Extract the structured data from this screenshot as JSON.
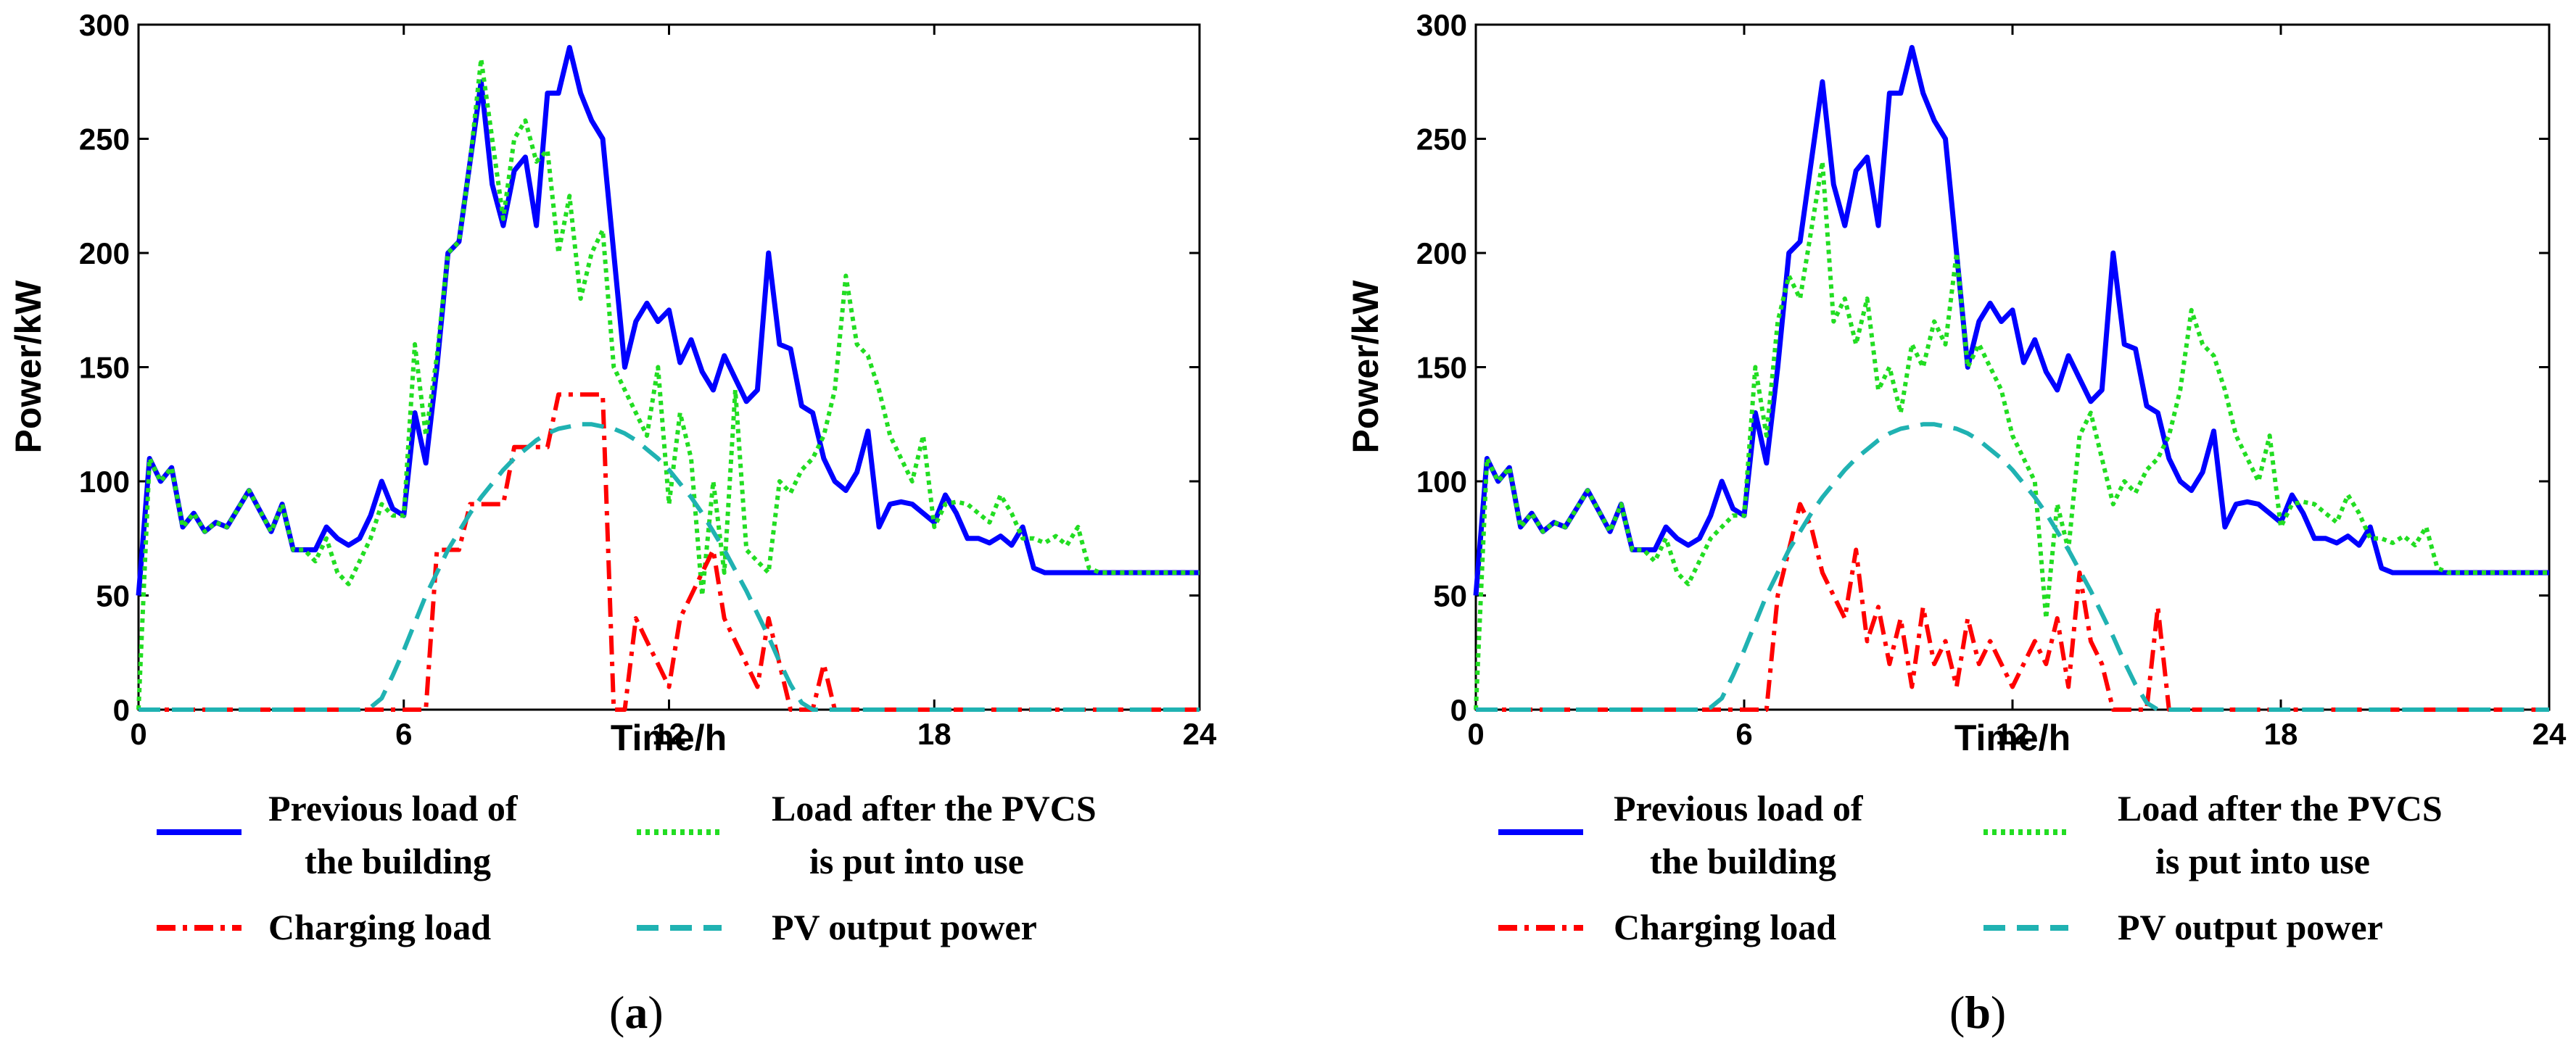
{
  "chart_data": [
    {
      "type": "line",
      "panel_label": "a",
      "xlabel": "Time/h",
      "ylabel": "Power/kW",
      "xlim": [
        0,
        24
      ],
      "ylim": [
        0,
        300
      ],
      "xticks": [
        "0",
        "6",
        "12",
        "18",
        "24"
      ],
      "yticks": [
        "0",
        "50",
        "100",
        "150",
        "200",
        "250",
        "300"
      ],
      "series": [
        {
          "name": "Previous load of the building",
          "color": "#0000ff",
          "style": "solid",
          "x": [
            0,
            0.25,
            0.5,
            0.75,
            1,
            1.25,
            1.5,
            1.75,
            2,
            2.25,
            2.5,
            2.75,
            3,
            3.25,
            3.5,
            3.75,
            4,
            4.25,
            4.5,
            4.75,
            5,
            5.25,
            5.5,
            5.75,
            6,
            6.25,
            6.5,
            6.75,
            7,
            7.25,
            7.5,
            7.75,
            8,
            8.25,
            8.5,
            8.75,
            9,
            9.25,
            9.5,
            9.75,
            10,
            10.25,
            10.5,
            10.75,
            11,
            11.25,
            11.5,
            11.75,
            12,
            12.25,
            12.5,
            12.75,
            13,
            13.25,
            13.5,
            13.75,
            14,
            14.25,
            14.5,
            14.75,
            15,
            15.25,
            15.5,
            15.75,
            16,
            16.25,
            16.5,
            16.75,
            17,
            17.25,
            17.5,
            17.75,
            18,
            18.25,
            18.5,
            18.75,
            19,
            19.25,
            19.5,
            19.75,
            20,
            20.25,
            20.5,
            20.75,
            21,
            21.25,
            21.5,
            21.75,
            22,
            22.25,
            22.5,
            22.75,
            23,
            23.25,
            23.5,
            23.75,
            24
          ],
          "values": [
            50,
            110,
            100,
            106,
            80,
            86,
            78,
            82,
            80,
            88,
            96,
            87,
            78,
            90,
            70,
            70,
            70,
            80,
            75,
            72,
            75,
            85,
            100,
            88,
            85,
            130,
            108,
            150,
            200,
            205,
            240,
            275,
            230,
            212,
            236,
            242,
            212,
            270,
            270,
            290,
            270,
            258,
            250,
            200,
            150,
            170,
            178,
            170,
            175,
            152,
            162,
            148,
            140,
            155,
            145,
            135,
            140,
            200,
            160,
            158,
            133,
            130,
            110,
            100,
            96,
            104,
            122,
            80,
            90,
            91,
            90,
            86,
            82,
            94,
            86,
            75,
            75,
            73,
            76,
            72,
            80,
            62,
            60,
            60,
            60,
            60,
            60,
            60,
            60,
            60,
            60,
            60,
            60,
            60,
            60,
            60,
            60
          ]
        },
        {
          "name": "Load after the PVCS is put into use",
          "color": "#22dd22",
          "style": "dotted",
          "values": [
            0,
            110,
            100,
            106,
            80,
            86,
            78,
            82,
            80,
            88,
            96,
            87,
            78,
            90,
            70,
            70,
            65,
            75,
            60,
            55,
            65,
            75,
            90,
            85,
            85,
            160,
            120,
            155,
            200,
            205,
            240,
            285,
            250,
            215,
            250,
            258,
            240,
            245,
            200,
            225,
            180,
            200,
            210,
            150,
            140,
            130,
            120,
            150,
            90,
            130,
            110,
            50,
            100,
            60,
            140,
            70,
            65,
            60,
            100,
            95,
            105,
            110,
            120,
            140,
            190,
            160,
            155,
            140,
            120,
            110,
            100,
            120,
            80,
            90,
            91,
            90,
            86,
            82,
            94,
            86,
            75,
            75,
            73,
            76,
            72,
            80,
            62,
            60,
            60,
            60,
            60,
            60,
            60,
            60,
            60,
            60,
            60
          ]
        },
        {
          "name": "Charging load",
          "color": "#ff0000",
          "style": "dashdot",
          "values": [
            0,
            0,
            0,
            0,
            0,
            0,
            0,
            0,
            0,
            0,
            0,
            0,
            0,
            0,
            0,
            0,
            0,
            0,
            0,
            0,
            0,
            0,
            0,
            0,
            0,
            0,
            0,
            70,
            70,
            70,
            90,
            90,
            90,
            90,
            115,
            115,
            115,
            115,
            138,
            138,
            138,
            138,
            138,
            0,
            0,
            40,
            30,
            20,
            10,
            40,
            50,
            60,
            70,
            40,
            30,
            20,
            10,
            40,
            20,
            0,
            0,
            0,
            20,
            0,
            0,
            0,
            0,
            0,
            0,
            0,
            0,
            0,
            0,
            0,
            0,
            0,
            0,
            0,
            0,
            0,
            0,
            0,
            0,
            0,
            0,
            0,
            0,
            0,
            0,
            0,
            0,
            0,
            0,
            0,
            0,
            0,
            0
          ]
        },
        {
          "name": "PV output power",
          "color": "#20b2b2",
          "style": "dashed",
          "values": [
            0,
            0,
            0,
            0,
            0,
            0,
            0,
            0,
            0,
            0,
            0,
            0,
            0,
            0,
            0,
            0,
            0,
            0,
            0,
            0,
            0,
            1,
            5,
            15,
            26,
            38,
            50,
            60,
            70,
            78,
            86,
            93,
            99,
            105,
            110,
            114,
            118,
            121,
            123,
            124,
            125,
            125,
            124,
            123,
            121,
            118,
            114,
            110,
            105,
            99,
            93,
            86,
            78,
            70,
            61,
            52,
            42,
            32,
            21,
            11,
            3,
            0,
            0,
            0,
            0,
            0,
            0,
            0,
            0,
            0,
            0,
            0,
            0,
            0,
            0,
            0,
            0,
            0,
            0,
            0,
            0,
            0,
            0,
            0,
            0,
            0,
            0,
            0,
            0,
            0,
            0,
            0,
            0,
            0,
            0,
            0,
            0
          ]
        }
      ]
    },
    {
      "type": "line",
      "panel_label": "b",
      "xlabel": "Time/h",
      "ylabel": "Power/kW",
      "xlim": [
        0,
        24
      ],
      "ylim": [
        0,
        300
      ],
      "xticks": [
        "0",
        "6",
        "12",
        "18",
        "24"
      ],
      "yticks": [
        "0",
        "50",
        "100",
        "150",
        "200",
        "250",
        "300"
      ],
      "series": [
        {
          "name": "Previous load of the building",
          "color": "#0000ff",
          "style": "solid",
          "values": [
            50,
            110,
            100,
            106,
            80,
            86,
            78,
            82,
            80,
            88,
            96,
            87,
            78,
            90,
            70,
            70,
            70,
            80,
            75,
            72,
            75,
            85,
            100,
            88,
            85,
            130,
            108,
            150,
            200,
            205,
            240,
            275,
            230,
            212,
            236,
            242,
            212,
            270,
            270,
            290,
            270,
            258,
            250,
            200,
            150,
            170,
            178,
            170,
            175,
            152,
            162,
            148,
            140,
            155,
            145,
            135,
            140,
            200,
            160,
            158,
            133,
            130,
            110,
            100,
            96,
            104,
            122,
            80,
            90,
            91,
            90,
            86,
            82,
            94,
            86,
            75,
            75,
            73,
            76,
            72,
            80,
            62,
            60,
            60,
            60,
            60,
            60,
            60,
            60,
            60,
            60,
            60,
            60,
            60,
            60,
            60,
            60
          ]
        },
        {
          "name": "Load after the PVCS is put into use",
          "color": "#22dd22",
          "style": "dotted",
          "values": [
            0,
            110,
            100,
            106,
            80,
            86,
            78,
            82,
            80,
            88,
            96,
            87,
            78,
            90,
            70,
            70,
            65,
            75,
            60,
            55,
            65,
            75,
            80,
            85,
            85,
            150,
            120,
            170,
            190,
            180,
            210,
            240,
            170,
            180,
            160,
            180,
            140,
            150,
            130,
            160,
            150,
            170,
            160,
            200,
            150,
            160,
            150,
            140,
            120,
            110,
            100,
            40,
            90,
            70,
            120,
            130,
            110,
            90,
            100,
            95,
            105,
            110,
            120,
            140,
            175,
            160,
            155,
            140,
            120,
            110,
            100,
            120,
            80,
            90,
            91,
            90,
            86,
            82,
            94,
            86,
            75,
            75,
            73,
            76,
            72,
            80,
            62,
            60,
            60,
            60,
            60,
            60,
            60,
            60,
            60,
            60,
            60
          ]
        },
        {
          "name": "Charging load",
          "color": "#ff0000",
          "style": "dashdot",
          "values": [
            0,
            0,
            0,
            0,
            0,
            0,
            0,
            0,
            0,
            0,
            0,
            0,
            0,
            0,
            0,
            0,
            0,
            0,
            0,
            0,
            0,
            0,
            0,
            0,
            0,
            0,
            0,
            50,
            70,
            90,
            80,
            60,
            50,
            40,
            70,
            30,
            45,
            20,
            40,
            10,
            45,
            20,
            30,
            10,
            40,
            20,
            30,
            20,
            10,
            20,
            30,
            20,
            40,
            10,
            60,
            30,
            20,
            0,
            0,
            0,
            0,
            45,
            0,
            0,
            0,
            0,
            0,
            0,
            0,
            0,
            0,
            0,
            0,
            0,
            0,
            0,
            0,
            0,
            0,
            0,
            0,
            0,
            0,
            0,
            0,
            0,
            0,
            0,
            0,
            0,
            0,
            0,
            0,
            0,
            0,
            0,
            0
          ]
        },
        {
          "name": "PV output power",
          "color": "#20b2b2",
          "style": "dashed",
          "values": [
            0,
            0,
            0,
            0,
            0,
            0,
            0,
            0,
            0,
            0,
            0,
            0,
            0,
            0,
            0,
            0,
            0,
            0,
            0,
            0,
            0,
            1,
            5,
            15,
            26,
            38,
            50,
            60,
            70,
            78,
            86,
            93,
            99,
            105,
            110,
            114,
            118,
            121,
            123,
            124,
            125,
            125,
            124,
            123,
            121,
            118,
            114,
            110,
            105,
            99,
            93,
            86,
            78,
            70,
            61,
            52,
            42,
            32,
            21,
            11,
            3,
            0,
            0,
            0,
            0,
            0,
            0,
            0,
            0,
            0,
            0,
            0,
            0,
            0,
            0,
            0,
            0,
            0,
            0,
            0,
            0,
            0,
            0,
            0,
            0,
            0,
            0,
            0,
            0,
            0,
            0,
            0,
            0,
            0,
            0,
            0,
            0
          ]
        }
      ]
    }
  ],
  "legend": {
    "previous_load_line1": "Previous load of",
    "previous_load_line2": "the building",
    "load_after_line1": "Load after the PVCS",
    "load_after_line2": "is put into use",
    "charging_load": "Charging load",
    "pv_output": "PV output power"
  },
  "panel_labels": {
    "a_open": "(",
    "a_letter": "a",
    "a_close": ")",
    "b_open": "(",
    "b_letter": "b",
    "b_close": ")"
  }
}
